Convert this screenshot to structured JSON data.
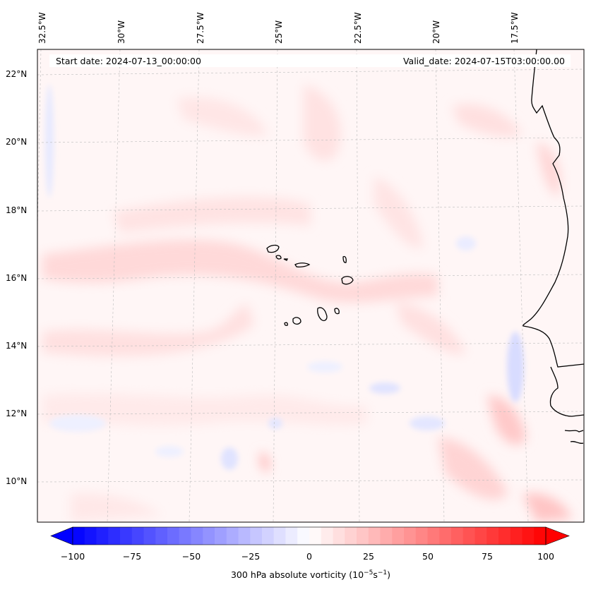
{
  "header": {
    "start_date": "Start date: 2024-07-13_00:00:00",
    "valid_date": "Valid_date: 2024-07-15T03:00:00.00"
  },
  "map": {
    "projection": "regional map, Cape Verde and West African coast",
    "longitude_labels": [
      "32.5°W",
      "30°W",
      "27.5°W",
      "25°W",
      "22.5°W",
      "20°W",
      "17.5°W"
    ],
    "latitude_labels": [
      "22°N",
      "20°N",
      "18°N",
      "16°N",
      "14°N",
      "12°N",
      "10°N"
    ],
    "gridlines": true,
    "coastline_color": "#000000"
  },
  "colorbar": {
    "title_prefix": "300 hPa absolute vorticity (10",
    "title_exp1": "−5",
    "title_mid": "s",
    "title_exp2": "−1",
    "title_suffix": ")",
    "ticks": [
      "−100",
      "−75",
      "−50",
      "−25",
      "0",
      "25",
      "50",
      "75",
      "100"
    ],
    "range": [
      -100,
      100
    ],
    "colormap": "bwr",
    "low_color": "#0000ff",
    "mid_color": "#ffffff",
    "high_color": "#ff0000"
  }
}
